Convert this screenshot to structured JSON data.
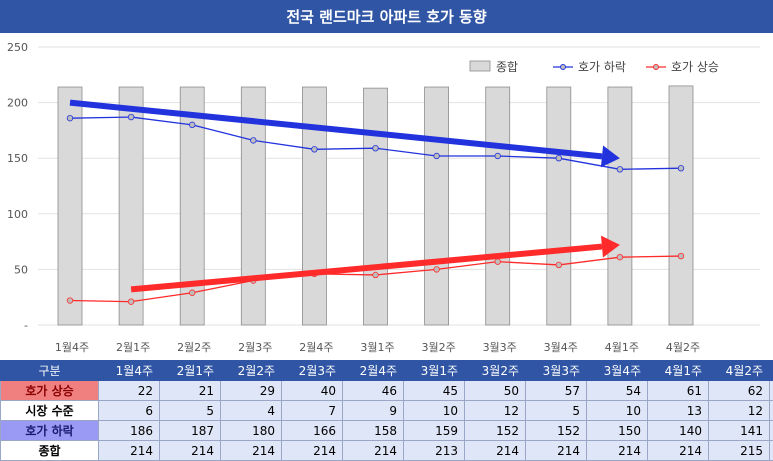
{
  "title": "전국 랜드마크 아파트 호가 동향",
  "colors": {
    "header": "#2f55a4",
    "bars": "#d9d9d9",
    "down": "#2233dd",
    "up": "#ff2a2a"
  },
  "table": {
    "header_label": "구분",
    "rows": [
      {
        "label": "호가 상승",
        "values": [
          22,
          21,
          29,
          40,
          46,
          45,
          50,
          57,
          54,
          61,
          62
        ]
      },
      {
        "label": "시장 수준",
        "values": [
          6,
          5,
          4,
          7,
          9,
          10,
          12,
          5,
          10,
          13,
          12
        ]
      },
      {
        "label": "호가 하락",
        "values": [
          186,
          187,
          180,
          166,
          158,
          159,
          152,
          152,
          150,
          140,
          141
        ]
      },
      {
        "label": "종합",
        "values": [
          214,
          214,
          214,
          214,
          214,
          213,
          214,
          214,
          214,
          214,
          215
        ]
      }
    ]
  },
  "chart_data": {
    "type": "bar",
    "categories": [
      "1월4주",
      "2월1주",
      "2월2주",
      "2월3주",
      "2월4주",
      "3월1주",
      "3월2주",
      "3월3주",
      "3월4주",
      "4월1주",
      "4월2주"
    ],
    "ylim": [
      0,
      250
    ],
    "yticks": [
      250,
      200,
      150,
      100,
      50,
      0
    ],
    "ytick_labels": [
      "250",
      "200",
      "150",
      "100",
      "50",
      "-"
    ],
    "legend_position": "top-right",
    "grid": true,
    "series": [
      {
        "name": "종합",
        "type": "bar",
        "values": [
          214,
          214,
          214,
          214,
          214,
          213,
          214,
          214,
          214,
          214,
          215
        ]
      },
      {
        "name": "호가 하락",
        "type": "line",
        "values": [
          186,
          187,
          180,
          166,
          158,
          159,
          152,
          152,
          150,
          140,
          141
        ]
      },
      {
        "name": "호가 상승",
        "type": "line",
        "values": [
          22,
          21,
          29,
          40,
          46,
          45,
          50,
          57,
          54,
          61,
          62
        ]
      }
    ],
    "annotations": [
      {
        "type": "arrow",
        "color": "blue",
        "from": {
          "x": "1월4주",
          "y": 200
        },
        "to": {
          "x": "4월1주",
          "y": 150
        }
      },
      {
        "type": "arrow",
        "color": "red",
        "from": {
          "x": "2월1주",
          "y": 32
        },
        "to": {
          "x": "4월1주",
          "y": 72
        }
      }
    ]
  }
}
